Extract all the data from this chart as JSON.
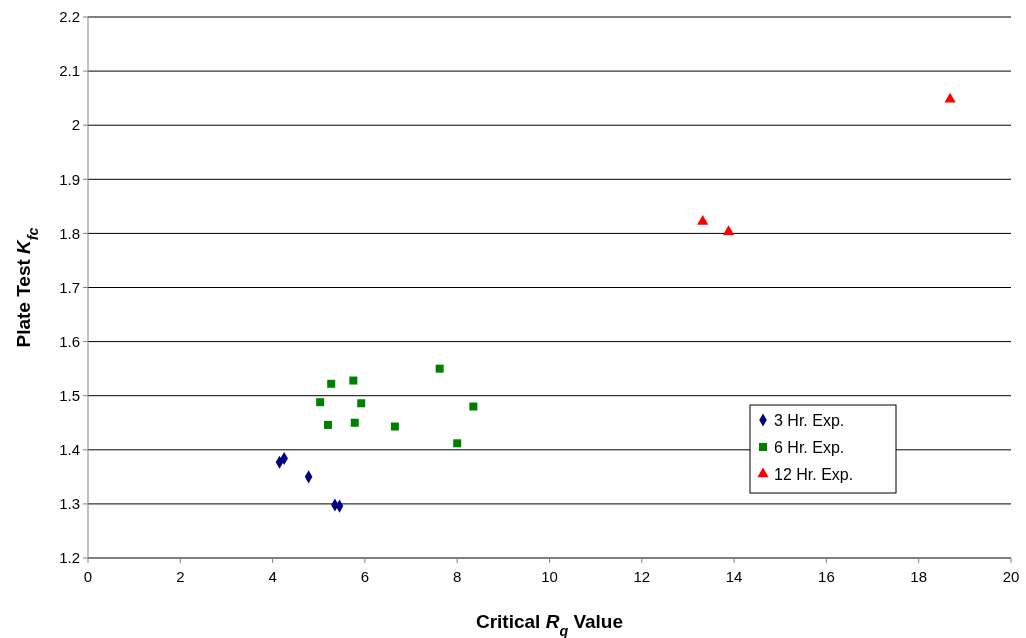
{
  "chart_data": {
    "type": "scatter",
    "xlabel": "Critical R$_{q}$ Value",
    "ylabel": "Plate Test K$_{fc}$",
    "xlim": [
      0,
      20
    ],
    "xticks": [
      0,
      2,
      4,
      6,
      8,
      10,
      12,
      14,
      16,
      18,
      20
    ],
    "ylim": [
      1.2,
      2.2
    ],
    "yticks": [
      1.2,
      1.3,
      1.4,
      1.5,
      1.6,
      1.7,
      1.8,
      1.9,
      2,
      2.1,
      2.2
    ],
    "grid": "y",
    "legend": "bottom right",
    "series": [
      {
        "name": "3 Hr. Exp.",
        "color": "#000080",
        "marker": "diamond",
        "x": [
          4.15,
          4.25,
          4.78,
          5.35,
          5.45
        ],
        "values": [
          1.377,
          1.384,
          1.35,
          1.298,
          1.296
        ]
      },
      {
        "name": "6 Hr. Exp.",
        "color": "#008000",
        "marker": "square",
        "x": [
          5.03,
          5.2,
          5.27,
          5.75,
          5.78,
          5.92,
          6.65,
          7.62,
          8.0,
          8.35
        ],
        "values": [
          1.488,
          1.446,
          1.522,
          1.528,
          1.45,
          1.486,
          1.443,
          1.55,
          1.412,
          1.48
        ]
      },
      {
        "name": "12 Hr. Exp.",
        "color": "#ff0000",
        "marker": "triangle",
        "x": [
          13.32,
          13.88,
          18.68
        ],
        "values": [
          1.822,
          1.803,
          2.048
        ]
      }
    ]
  }
}
